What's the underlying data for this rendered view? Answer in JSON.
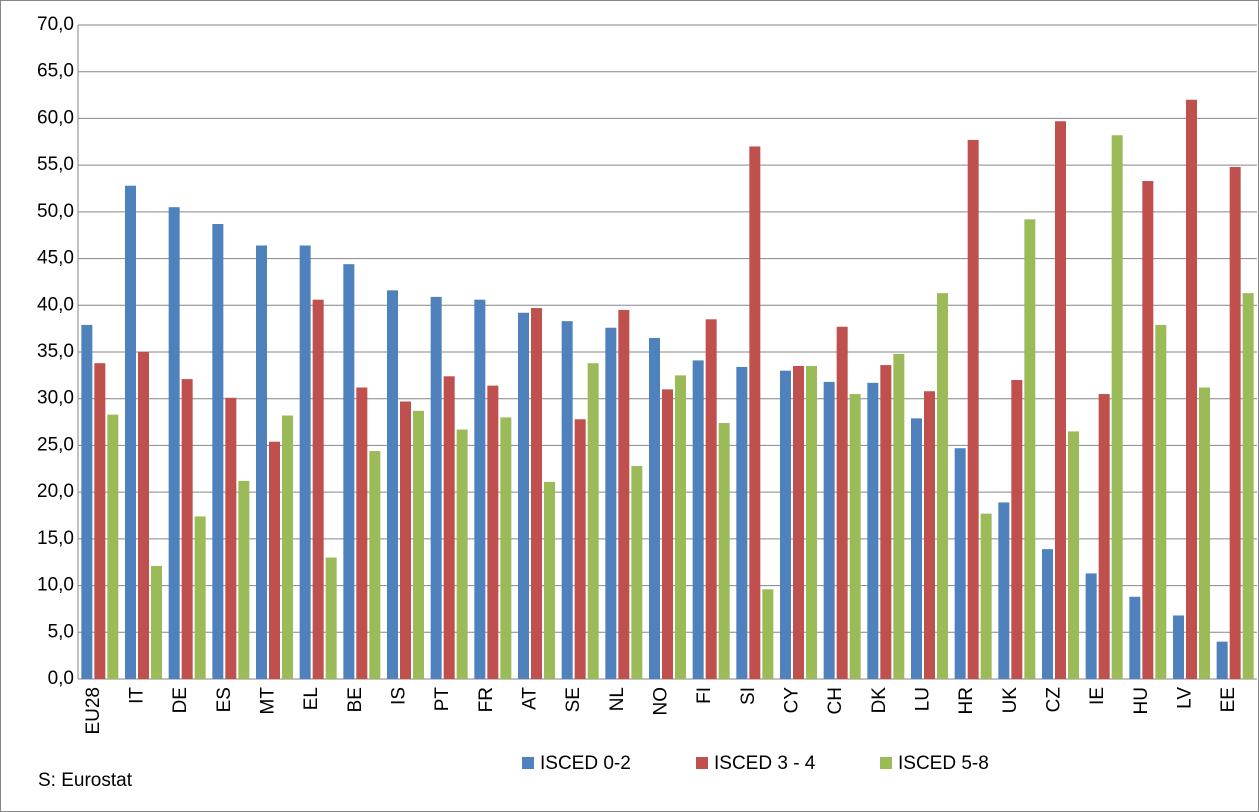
{
  "chart_data": {
    "type": "bar",
    "categories": [
      "EU28",
      "IT",
      "DE",
      "ES",
      "MT",
      "EL",
      "BE",
      "IS",
      "PT",
      "FR",
      "AT",
      "SE",
      "NL",
      "NO",
      "FI",
      "SI",
      "CY",
      "CH",
      "DK",
      "LU",
      "HR",
      "UK",
      "CZ",
      "IE",
      "HU",
      "LV",
      "EE"
    ],
    "series": [
      {
        "name": "ISCED 0-2",
        "color": "#4f81bd",
        "values": [
          37.9,
          52.8,
          50.5,
          48.7,
          46.4,
          46.4,
          44.4,
          41.6,
          40.9,
          40.6,
          39.2,
          38.3,
          37.6,
          36.5,
          34.1,
          33.4,
          33.0,
          31.8,
          31.7,
          27.9,
          24.7,
          18.9,
          13.9,
          11.3,
          8.8,
          6.8,
          4.0
        ]
      },
      {
        "name": "ISCED 3 - 4",
        "color": "#c0504d",
        "values": [
          33.8,
          35.0,
          32.1,
          30.1,
          25.4,
          40.6,
          31.2,
          29.7,
          32.4,
          31.4,
          39.7,
          27.8,
          39.5,
          31.0,
          38.5,
          57.0,
          33.5,
          37.7,
          33.6,
          30.8,
          57.7,
          32.0,
          59.7,
          30.5,
          53.3,
          62.0,
          54.8
        ]
      },
      {
        "name": "ISCED 5-8",
        "color": "#9bbb59",
        "values": [
          28.3,
          12.1,
          17.4,
          21.2,
          28.2,
          13.0,
          24.4,
          28.7,
          26.7,
          28.0,
          21.1,
          33.8,
          22.8,
          32.5,
          27.4,
          9.6,
          33.5,
          30.5,
          34.8,
          41.3,
          17.7,
          49.2,
          26.5,
          58.2,
          37.9,
          31.2,
          41.3
        ]
      }
    ],
    "ylim": [
      0,
      70
    ],
    "yticks": [
      {
        "value": 0,
        "label": "0,0"
      },
      {
        "value": 5,
        "label": "5,0"
      },
      {
        "value": 10,
        "label": "10,0"
      },
      {
        "value": 15,
        "label": "15,0"
      },
      {
        "value": 20,
        "label": "20,0"
      },
      {
        "value": 25,
        "label": "25,0"
      },
      {
        "value": 30,
        "label": "30,0"
      },
      {
        "value": 35,
        "label": "35,0"
      },
      {
        "value": 40,
        "label": "40,0"
      },
      {
        "value": 45,
        "label": "45,0"
      },
      {
        "value": 50,
        "label": "50,0"
      },
      {
        "value": 55,
        "label": "55,0"
      },
      {
        "value": 60,
        "label": "60,0"
      },
      {
        "value": 65,
        "label": "65,0"
      },
      {
        "value": 70,
        "label": "70,0"
      }
    ],
    "grid": true,
    "legend": "bottom",
    "source": "S: Eurostat"
  }
}
